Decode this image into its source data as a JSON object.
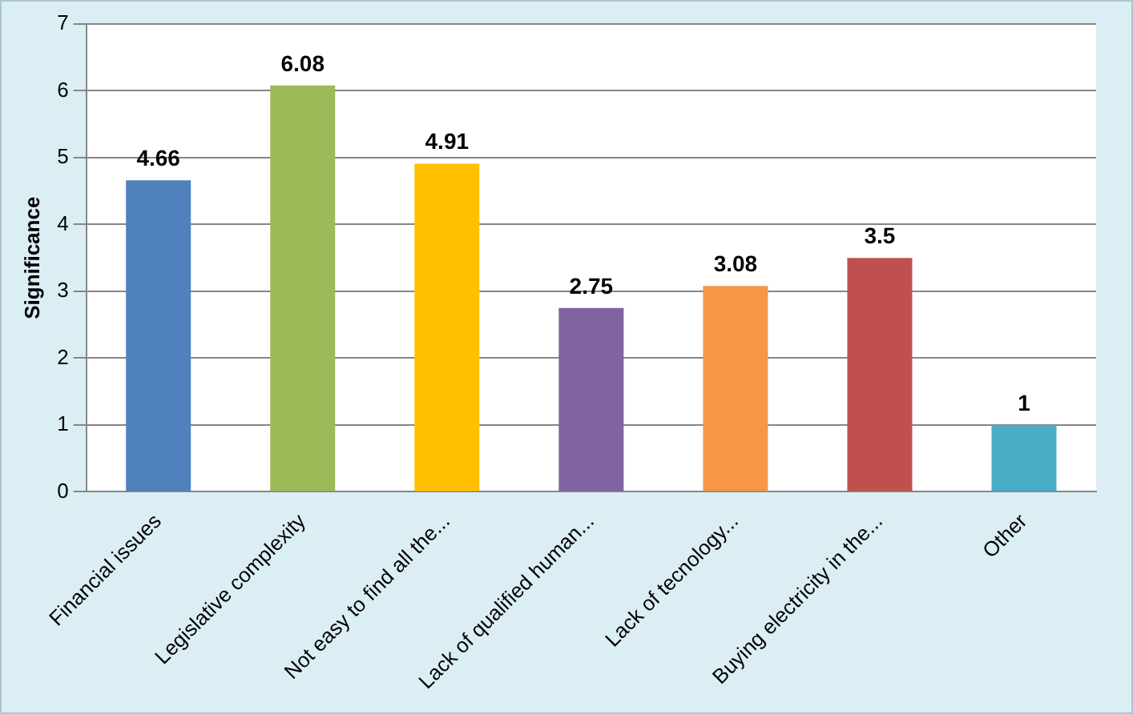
{
  "chart_data": {
    "type": "bar",
    "ylabel": "Significance",
    "categories": [
      "Financial issues",
      "Legislative complexity",
      "Not easy to find all the...",
      "Lack of qualified human...",
      "Lack of tecnology...",
      "Buying electricity in the...",
      "Other"
    ],
    "values": [
      4.66,
      6.08,
      4.91,
      2.75,
      3.08,
      3.5,
      1
    ],
    "colors": [
      "#4f81bd",
      "#9bbb59",
      "#ffc000",
      "#8064a2",
      "#f79646",
      "#c0504d",
      "#4bacc6"
    ],
    "ylim": [
      0,
      7
    ],
    "yticks": [
      0,
      1,
      2,
      3,
      4,
      5,
      6,
      7
    ],
    "grid": "y",
    "data_labels": true,
    "legend": false
  }
}
